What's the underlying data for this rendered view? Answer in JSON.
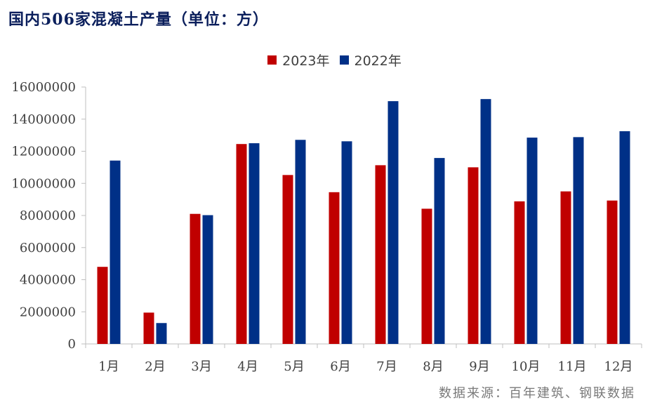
{
  "title": "国内506家混凝土产量（单位：方）",
  "source": "数据来源：百年建筑、钢联数据",
  "colors": {
    "series_2023": "#C00000",
    "series_2022": "#003087",
    "axis": "#bfbfbf",
    "text": "#404040"
  },
  "chart_data": {
    "type": "bar",
    "title": "国内506家混凝土产量（单位：方）",
    "xlabel": "",
    "ylabel": "",
    "categories": [
      "1月",
      "2月",
      "3月",
      "4月",
      "5月",
      "6月",
      "7月",
      "8月",
      "9月",
      "10月",
      "11月",
      "12月"
    ],
    "series": [
      {
        "name": "2023年",
        "values": [
          4800000,
          1950000,
          8100000,
          12450000,
          10520000,
          9450000,
          11130000,
          8420000,
          11000000,
          8880000,
          9500000,
          8930000
        ]
      },
      {
        "name": "2022年",
        "values": [
          11420000,
          1300000,
          8020000,
          12500000,
          12710000,
          12620000,
          15120000,
          11580000,
          15250000,
          12850000,
          12880000,
          13250000
        ]
      }
    ],
    "ylim": [
      0,
      16000000
    ],
    "yticks": [
      0,
      2000000,
      4000000,
      6000000,
      8000000,
      10000000,
      12000000,
      14000000,
      16000000
    ],
    "grid": false,
    "legend_position": "top-center"
  }
}
